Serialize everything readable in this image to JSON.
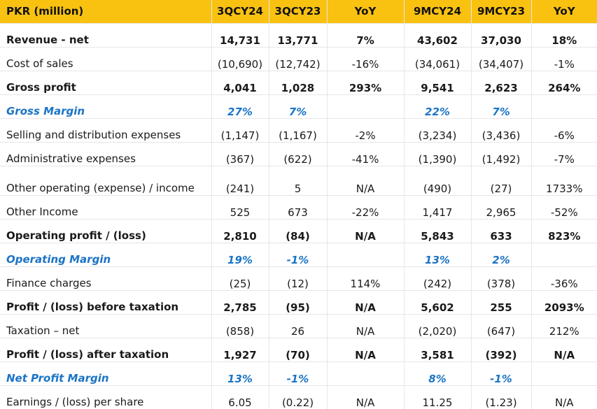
{
  "table": {
    "columns": [
      "PKR (million)",
      "3QCY24",
      "3QCY23",
      "YoY",
      "9MCY24",
      "9MCY23",
      "YoY"
    ],
    "rows": [
      {
        "label": "Revenue - net",
        "values": [
          "14,731",
          "13,771",
          "7%",
          "43,602",
          "37,030",
          "18%"
        ]
      },
      {
        "label": "Cost of sales",
        "values": [
          "(10,690)",
          "(12,742)",
          "-16%",
          "(34,061)",
          "(34,407)",
          "-1%"
        ]
      },
      {
        "label": "Gross profit",
        "values": [
          "4,041",
          "1,028",
          "293%",
          "9,541",
          "2,623",
          "264%"
        ]
      },
      {
        "label": "Gross Margin",
        "values": [
          "27%",
          "7%",
          "",
          "22%",
          "7%",
          ""
        ]
      },
      {
        "label": "Selling and distribution expenses",
        "values": [
          "(1,147)",
          "(1,167)",
          "-2%",
          "(3,234)",
          "(3,436)",
          "-6%"
        ]
      },
      {
        "label": "Administrative expenses",
        "values": [
          "(367)",
          "(622)",
          "-41%",
          "(1,390)",
          "(1,492)",
          "-7%"
        ]
      },
      {
        "label": "Other operating (expense) / income",
        "values": [
          "(241)",
          "5",
          "N/A",
          "(490)",
          "(27)",
          "1733%"
        ]
      },
      {
        "label": "Other Income",
        "values": [
          "525",
          "673",
          "-22%",
          "1,417",
          "2,965",
          "-52%"
        ]
      },
      {
        "label": "Operating profit / (loss)",
        "values": [
          "2,810",
          "(84)",
          "N/A",
          "5,843",
          "633",
          "823%"
        ]
      },
      {
        "label": "Operating Margin",
        "values": [
          "19%",
          "-1%",
          "",
          "13%",
          "2%",
          ""
        ]
      },
      {
        "label": "Finance charges",
        "values": [
          "(25)",
          "(12)",
          "114%",
          "(242)",
          "(378)",
          "-36%"
        ]
      },
      {
        "label": "Profit / (loss) before taxation",
        "values": [
          "2,785",
          "(95)",
          "N/A",
          "5,602",
          "255",
          "2093%"
        ]
      },
      {
        "label": "Taxation – net",
        "values": [
          "(858)",
          "26",
          "N/A",
          "(2,020)",
          "(647)",
          "212%"
        ]
      },
      {
        "label": "Profit / (loss) after taxation",
        "values": [
          "1,927",
          "(70)",
          "N/A",
          "3,581",
          "(392)",
          "N/A"
        ]
      },
      {
        "label": "Net Profit Margin",
        "values": [
          "13%",
          "-1%",
          "",
          "8%",
          "-1%",
          ""
        ]
      },
      {
        "label": "Earnings / (loss) per share",
        "values": [
          "6.05",
          "(0.22)",
          "N/A",
          "11.25",
          "(1.23)",
          "N/A"
        ]
      }
    ]
  },
  "colors": {
    "header_background": "#f9c211",
    "margin_text": "#1b74c5",
    "grid_line": "#e6e6e6"
  }
}
